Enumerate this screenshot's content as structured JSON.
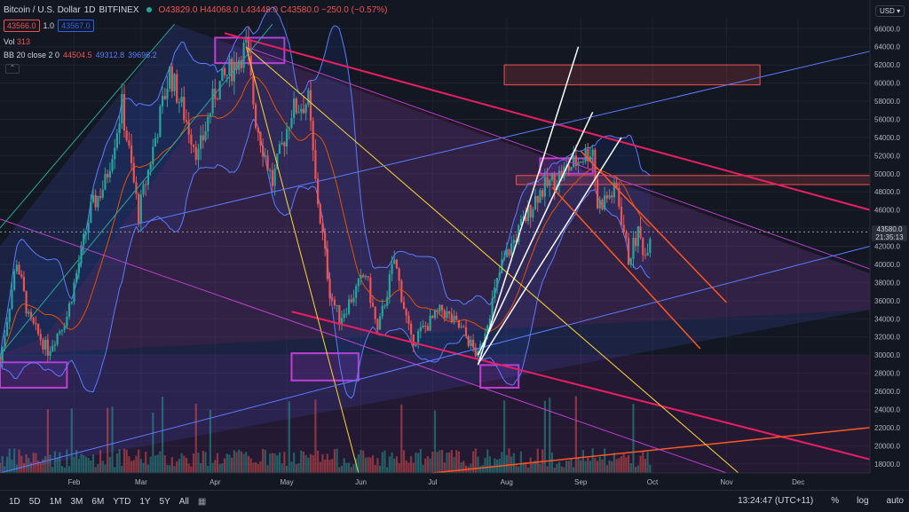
{
  "header": {
    "symbol": "Bitcoin / U.S. Dollar",
    "interval": "1D",
    "exchange": "BITFINEX",
    "ohlc_text": "O43829.0  H44068.0  L43448.0  C43580.0  −250.0 (−0.57%)",
    "bid": "43566.0",
    "spread": "1.0",
    "ask": "43567.0",
    "vol_label": "Vol",
    "vol_value": "313",
    "bb_label": "BB 20 close 2 0",
    "bb_mid": "44504.5",
    "bb_up": "49312.8",
    "bb_low": "39696.2",
    "currency": "USD"
  },
  "last_price": {
    "value": "43580.0",
    "countdown": "21:35:13"
  },
  "toolbar": {
    "ranges": [
      "1D",
      "5D",
      "1M",
      "3M",
      "6M",
      "YTD",
      "1Y",
      "5Y",
      "All"
    ],
    "time": "13:24:47 (UTC+11)",
    "pct": "%",
    "log": "log",
    "auto": "auto"
  },
  "colors": {
    "bg": "#131722",
    "up": "#26a69a",
    "down": "#ef5350",
    "bb": "#5b7cff",
    "pink": "#e91e63",
    "yellow": "#fdd835",
    "magenta": "#c03fd0"
  },
  "chart_data": {
    "type": "candlestick",
    "x_ticks": [
      "Feb",
      "Mar",
      "Apr",
      "May",
      "Jun",
      "Jul",
      "Aug",
      "Sep",
      "Oct",
      "Nov",
      "Dec"
    ],
    "y_ticks": [
      18000,
      20000,
      22000,
      24000,
      26000,
      28000,
      30000,
      32000,
      34000,
      36000,
      38000,
      40000,
      42000,
      44000,
      46000,
      48000,
      50000,
      52000,
      54000,
      56000,
      58000,
      60000,
      62000,
      64000,
      66000
    ],
    "ylim": [
      17000,
      67200
    ],
    "xlim": [
      "2021-01-01",
      "2021-12-31"
    ],
    "price_path": [
      [
        "2021-01-01",
        29300
      ],
      [
        "2021-01-08",
        40500
      ],
      [
        "2021-01-13",
        34000
      ],
      [
        "2021-01-21",
        30500
      ],
      [
        "2021-01-29",
        34300
      ],
      [
        "2021-02-08",
        46000
      ],
      [
        "2021-02-14",
        49000
      ],
      [
        "2021-02-21",
        57500
      ],
      [
        "2021-02-28",
        45500
      ],
      [
        "2021-03-13",
        61200
      ],
      [
        "2021-03-25",
        52000
      ],
      [
        "2021-04-01",
        59000
      ],
      [
        "2021-04-14",
        64000
      ],
      [
        "2021-04-18",
        56000
      ],
      [
        "2021-04-25",
        49000
      ],
      [
        "2021-05-03",
        57000
      ],
      [
        "2021-05-10",
        58000
      ],
      [
        "2021-05-13",
        49000
      ],
      [
        "2021-05-19",
        37000
      ],
      [
        "2021-05-23",
        34000
      ],
      [
        "2021-06-03",
        39000
      ],
      [
        "2021-06-08",
        32500
      ],
      [
        "2021-06-15",
        40500
      ],
      [
        "2021-06-22",
        31500
      ],
      [
        "2021-07-05",
        35000
      ],
      [
        "2021-07-14",
        32500
      ],
      [
        "2021-07-20",
        29800
      ],
      [
        "2021-07-30",
        40000
      ],
      [
        "2021-08-14",
        47800
      ],
      [
        "2021-08-23",
        49800
      ],
      [
        "2021-09-06",
        52800
      ],
      [
        "2021-09-08",
        46500
      ],
      [
        "2021-09-16",
        48200
      ],
      [
        "2021-09-21",
        40600
      ],
      [
        "2021-09-25",
        43500
      ],
      [
        "2021-09-28",
        41000
      ],
      [
        "2021-09-30",
        43580
      ]
    ],
    "bollinger": {
      "period": 20,
      "stddev": 2,
      "middle": 44504.5,
      "upper": 49312.8,
      "lower": 39696.2
    },
    "last_close": 43580.0,
    "drawn_zones": [
      {
        "color": "red",
        "from": 59500,
        "to": 62000
      },
      {
        "color": "red",
        "from": 48800,
        "to": 49800
      }
    ]
  }
}
